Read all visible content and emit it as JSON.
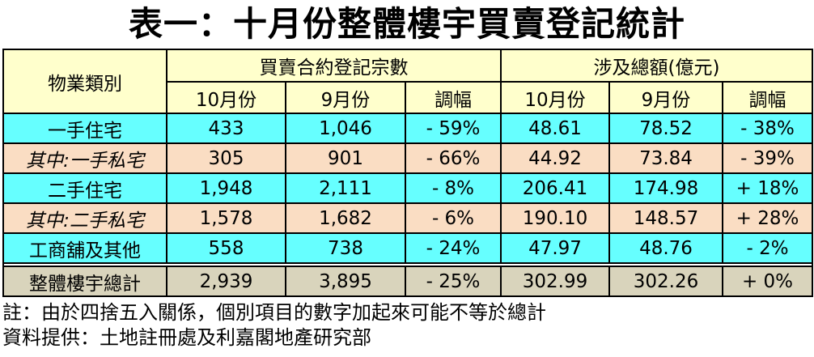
{
  "title": "表一：十月份整體樓宇買賣登記統計",
  "colors": {
    "header_bg": "#FFFFCC",
    "primary_row_bg": "#66FFFF",
    "sub_row_bg": "#FADDC3",
    "total_row_bg": "#D9D4BC",
    "border": "#000000",
    "text": "#000000"
  },
  "table": {
    "header": {
      "category": "物業類別",
      "group1": "買賣合約登記宗數",
      "group2": "涉及總額(億元)",
      "sub": [
        "10月份",
        "9月份",
        "調幅",
        "10月份",
        "9月份",
        "調幅"
      ]
    },
    "rows": [
      {
        "label": "一手住宅",
        "style": "cyan",
        "values": [
          "433",
          "1,046",
          "- 59%",
          "48.61",
          "78.52",
          "- 38%"
        ]
      },
      {
        "label": "其中:一手私宅",
        "style": "peach",
        "values": [
          "305",
          "901",
          "- 66%",
          "44.92",
          "73.84",
          "- 39%"
        ]
      },
      {
        "label": "二手住宅",
        "style": "cyan",
        "values": [
          "1,948",
          "2,111",
          "- 8%",
          "206.41",
          "174.98",
          "+ 18%"
        ]
      },
      {
        "label": "其中:二手私宅",
        "style": "peach",
        "values": [
          "1,578",
          "1,682",
          "- 6%",
          "190.10",
          "148.57",
          "+ 28%"
        ]
      },
      {
        "label": "工商舖及其他",
        "style": "cyan",
        "values": [
          "558",
          "738",
          "- 24%",
          "47.97",
          "48.76",
          "- 2%"
        ]
      }
    ],
    "total": {
      "label": "整體樓宇總計",
      "values": [
        "2,939",
        "3,895",
        "- 25%",
        "302.99",
        "302.26",
        "+ 0%"
      ]
    }
  },
  "notes": [
    "註：由於四捨五入關係，個別項目的數字加起來可能不等於總計",
    "資料提供：土地註冊處及利嘉閣地產研究部"
  ]
}
